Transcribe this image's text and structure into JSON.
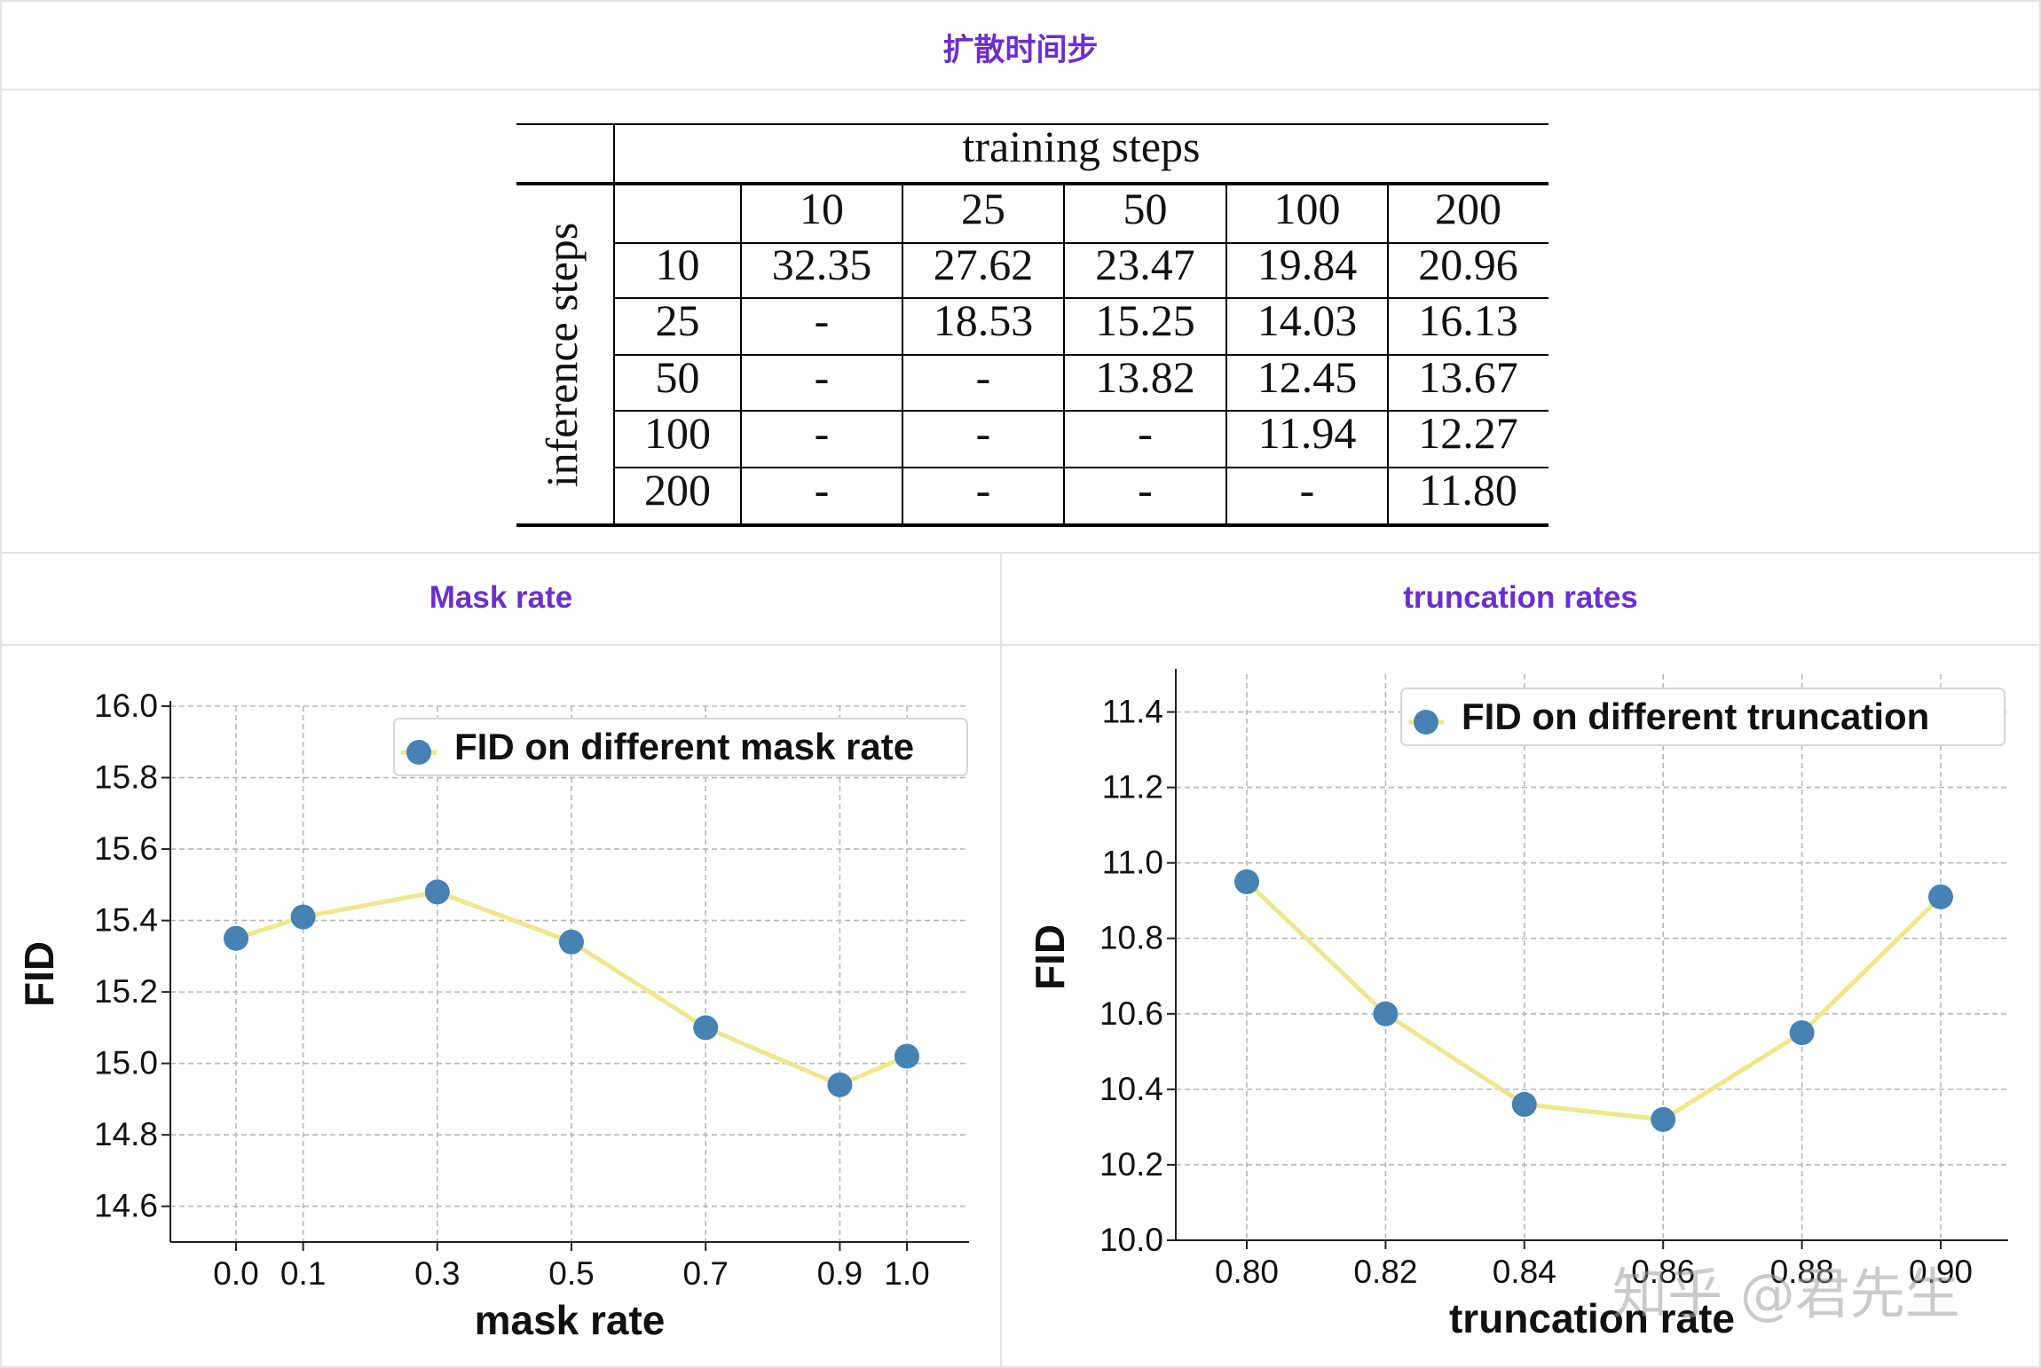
{
  "headers": {
    "top": "扩散时间步",
    "left": "Mask rate",
    "right": "truncation rates"
  },
  "table": {
    "col_header": "training steps",
    "row_header": "inference steps",
    "columns": [
      "10",
      "25",
      "50",
      "100",
      "200"
    ],
    "rows": [
      {
        "label": "10",
        "cells": [
          "32.35",
          "27.62",
          "23.47",
          "19.84",
          "20.96"
        ]
      },
      {
        "label": "25",
        "cells": [
          "-",
          "18.53",
          "15.25",
          "14.03",
          "16.13"
        ]
      },
      {
        "label": "50",
        "cells": [
          "-",
          "-",
          "13.82",
          "12.45",
          "13.67"
        ]
      },
      {
        "label": "100",
        "cells": [
          "-",
          "-",
          "-",
          "11.94",
          "12.27"
        ]
      },
      {
        "label": "200",
        "cells": [
          "-",
          "-",
          "-",
          "-",
          "11.80"
        ]
      }
    ]
  },
  "chart_data": [
    {
      "type": "line",
      "title": "",
      "xlabel": "mask rate",
      "ylabel": "FID",
      "legend": "FID on different mask rate",
      "legend_position": "top-right",
      "x": [
        0.0,
        0.1,
        0.3,
        0.5,
        0.7,
        0.9,
        1.0
      ],
      "x_tick_labels": [
        "0.0",
        "0.1",
        "0.3",
        "0.5",
        "0.7",
        "0.9",
        "1.0"
      ],
      "values": [
        15.35,
        15.41,
        15.48,
        15.34,
        15.1,
        14.94,
        15.02
      ],
      "xlim": [
        -0.1,
        1.11
      ],
      "ylim": [
        14.5,
        16.0
      ],
      "y_ticks": [
        "14.6",
        "14.8",
        "15.0",
        "15.2",
        "15.4",
        "15.6",
        "15.8",
        "16.0"
      ],
      "grid": true,
      "line_color": "#f0e68c",
      "marker_color": "#4682b4"
    },
    {
      "type": "line",
      "title": "",
      "xlabel": "truncation rate",
      "ylabel": "FID",
      "legend": "FID on different truncation",
      "legend_position": "top-right",
      "x": [
        0.8,
        0.82,
        0.84,
        0.86,
        0.88,
        0.9
      ],
      "x_tick_labels": [
        "0.80",
        "0.82",
        "0.84",
        "0.86",
        "0.88",
        "0.90"
      ],
      "values": [
        10.95,
        10.6,
        10.36,
        10.32,
        10.55,
        10.91
      ],
      "xlim": [
        0.79,
        0.91
      ],
      "ylim": [
        10.0,
        11.5
      ],
      "y_ticks": [
        "10.0",
        "10.2",
        "10.4",
        "10.6",
        "10.8",
        "11.0",
        "11.2",
        "11.4"
      ],
      "grid": true,
      "line_color": "#f0e68c",
      "marker_color": "#4682b4"
    }
  ],
  "watermark": "知乎 @君先生"
}
